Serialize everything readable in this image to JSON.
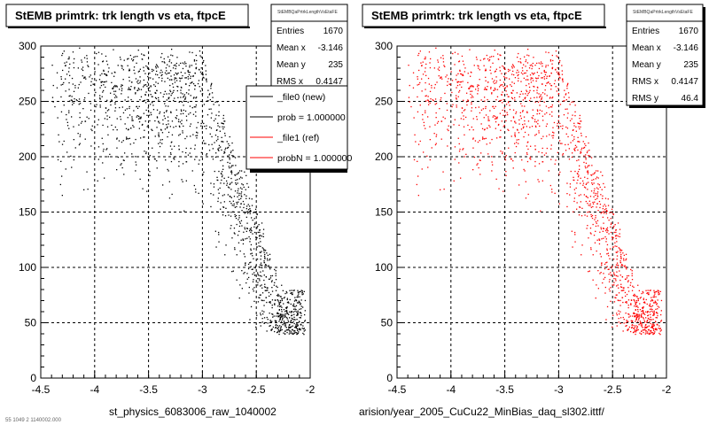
{
  "chart_data": [
    {
      "type": "scatter",
      "title": "StEMB primtrk: trk length vs eta, ftpcE",
      "stats_header": "StEMBQaPrtrkLengthVsEtaFE",
      "stats": [
        {
          "label": "Entries",
          "value": "1670"
        },
        {
          "label": "Mean x",
          "value": "-3.146"
        },
        {
          "label": "Mean y",
          "value": "235"
        },
        {
          "label": "RMS x",
          "value": "0.4147"
        }
      ],
      "xlabel": "st_physics_6083006_raw_1040002",
      "xlim": [
        -4.5,
        -2
      ],
      "ylim": [
        0,
        300
      ],
      "xticks": [
        "-4.5",
        "-4",
        "-3.5",
        "-3",
        "-2.5",
        "-2"
      ],
      "yticks": [
        "0",
        "50",
        "100",
        "150",
        "200",
        "250",
        "300"
      ],
      "marker_color": "#000000",
      "legend": [
        {
          "label": "_file0 (new)",
          "color": "#000000"
        },
        {
          "label": "prob = 1.000000",
          "color": "#000000"
        },
        {
          "label": "_file1 (ref)",
          "color": "#ff0000"
        },
        {
          "label": "probN = 1.000000",
          "color": "#ff0000"
        }
      ],
      "footer": "55 1049 2 1140002.000"
    },
    {
      "type": "scatter",
      "title": "StEMB primtrk: trk length vs eta, ftpcE",
      "stats_header": "StEMBQaPrtrkLengthVsEtaFE",
      "stats": [
        {
          "label": "Entries",
          "value": "1670"
        },
        {
          "label": "Mean x",
          "value": "-3.146"
        },
        {
          "label": "Mean y",
          "value": "235"
        },
        {
          "label": "RMS x",
          "value": "0.4147"
        },
        {
          "label": "RMS y",
          "value": "46.4"
        }
      ],
      "xlabel": "arision/year_2005_CuCu22_MinBias_daq_sl302.ittf/",
      "xlim": [
        -4.5,
        -2
      ],
      "ylim": [
        0,
        300
      ],
      "xticks": [
        "-4.5",
        "-4",
        "-3.5",
        "-3",
        "-2.5",
        "-2"
      ],
      "yticks": [
        "0",
        "50",
        "100",
        "150",
        "200",
        "250",
        "300"
      ],
      "marker_color": "#ff0000"
    }
  ]
}
